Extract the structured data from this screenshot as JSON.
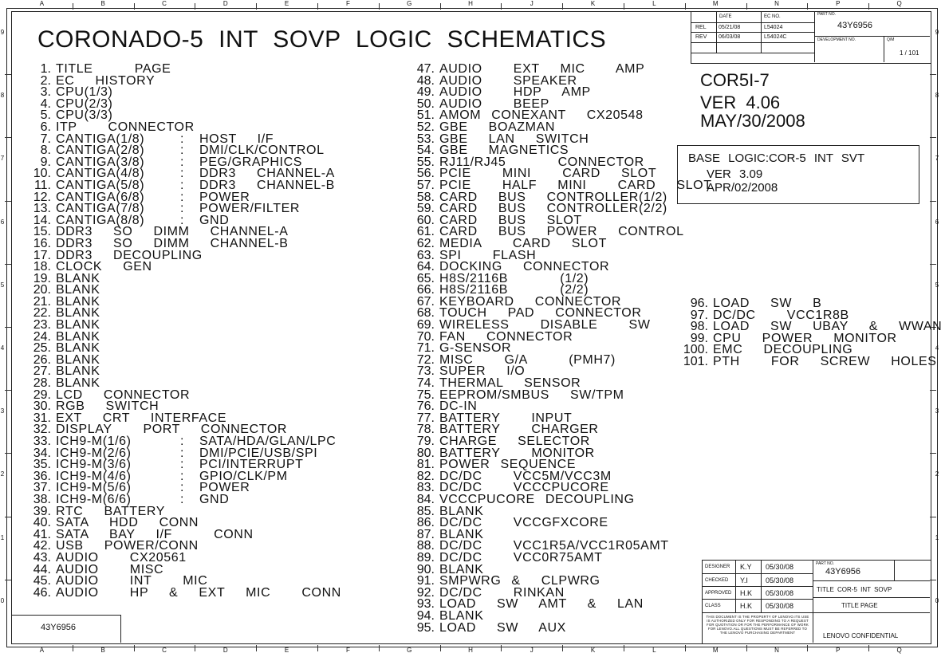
{
  "grid": {
    "columns": [
      "A",
      "B",
      "C",
      "D",
      "E",
      "F",
      "G",
      "H",
      "J",
      "K",
      "L",
      "M",
      "N",
      "P",
      "Q"
    ],
    "rows": [
      "9",
      "8",
      "7",
      "6",
      "5",
      "4",
      "3",
      "2",
      "1",
      "0"
    ]
  },
  "title": "CORONADO-5  INT   SOVP  LOGIC   SCHEMATICS",
  "index_col1": [
    {
      "n": "1.",
      "t": "TITLE    PAGE"
    },
    {
      "n": "2.",
      "t": "EC  HISTORY"
    },
    {
      "n": "3.",
      "t": "CPU(1/3)"
    },
    {
      "n": "4.",
      "t": "CPU(2/3)"
    },
    {
      "n": "5.",
      "t": "CPU(3/3)"
    },
    {
      "n": "6.",
      "t": "ITP   CONNECTOR"
    },
    {
      "n": "7.",
      "t": "CANTIGA(1/8)",
      "s": "HOST  I/F"
    },
    {
      "n": "8.",
      "t": "CANTIGA(2/8)",
      "s": "DMI/CLK/CONTROL"
    },
    {
      "n": "9.",
      "t": "CANTIGA(3/8)",
      "s": "PEG/GRAPHICS"
    },
    {
      "n": "10.",
      "t": "CANTIGA(4/8)",
      "s": "DDR3  CHANNEL-A"
    },
    {
      "n": "11.",
      "t": "CANTIGA(5/8)",
      "s": "DDR3  CHANNEL-B"
    },
    {
      "n": "12.",
      "t": "CANTIGA(6/8)",
      "s": "POWER"
    },
    {
      "n": "13.",
      "t": "CANTIGA(7/8)",
      "s": "POWER/FILTER"
    },
    {
      "n": "14.",
      "t": "CANTIGA(8/8)",
      "s": "GND"
    },
    {
      "n": "15.",
      "t": "DDR3  SO  DIMM  CHANNEL-A"
    },
    {
      "n": "16.",
      "t": "DDR3  SO  DIMM  CHANNEL-B"
    },
    {
      "n": "17.",
      "t": "DDR3  DECOUPLING"
    },
    {
      "n": "18.",
      "t": "CLOCK  GEN"
    },
    {
      "n": "19.",
      "t": "BLANK"
    },
    {
      "n": "20.",
      "t": "BLANK"
    },
    {
      "n": "21.",
      "t": "BLANK"
    },
    {
      "n": "22.",
      "t": "BLANK"
    },
    {
      "n": "23.",
      "t": "BLANK"
    },
    {
      "n": "24.",
      "t": "BLANK"
    },
    {
      "n": "25.",
      "t": "BLANK"
    },
    {
      "n": "26.",
      "t": "BLANK"
    },
    {
      "n": "27.",
      "t": "BLANK"
    },
    {
      "n": "28.",
      "t": "BLANK"
    },
    {
      "n": "29.",
      "t": "LCD  CONNECTOR"
    },
    {
      "n": "30.",
      "t": "RGB  SWITCH"
    },
    {
      "n": "31.",
      "t": "EXT  CRT  INTERFACE"
    },
    {
      "n": "32.",
      "t": "DISPLAY   PORT  CONNECTOR"
    },
    {
      "n": "33.",
      "t": "ICH9-M(1/6)",
      "s": "SATA/HDA/GLAN/LPC"
    },
    {
      "n": "34.",
      "t": "ICH9-M(2/6)",
      "s": "DMI/PCIE/USB/SPI"
    },
    {
      "n": "35.",
      "t": "ICH9-M(3/6)",
      "s": "PCI/INTERRUPT"
    },
    {
      "n": "36.",
      "t": "ICH9-M(4/6)",
      "s": "GPIO/CLK/PM"
    },
    {
      "n": "37.",
      "t": "ICH9-M(5/6)",
      "s": "POWER"
    },
    {
      "n": "38.",
      "t": "ICH9-M(6/6)",
      "s": "GND"
    },
    {
      "n": "39.",
      "t": "RTC  BATTERY"
    },
    {
      "n": "40.",
      "t": "SATA  HDD  CONN"
    },
    {
      "n": "41.",
      "t": "SATA  BAY  I/F    CONN"
    },
    {
      "n": "42.",
      "t": "USB  POWER/CONN"
    },
    {
      "n": "43.",
      "t": "AUDIO   CX20561"
    },
    {
      "n": "44.",
      "t": "AUDIO   MISC"
    },
    {
      "n": "45.",
      "t": "AUDIO   INT   MIC"
    },
    {
      "n": "46.",
      "t": "AUDIO   HP  &  EXT  MIC   CONN"
    }
  ],
  "index_col2": [
    {
      "n": "47.",
      "t": "AUDIO   EXT  MIC   AMP"
    },
    {
      "n": "48.",
      "t": "AUDIO   SPEAKER"
    },
    {
      "n": "49.",
      "t": "AUDIO   HDP  AMP"
    },
    {
      "n": "50.",
      "t": "AUDIO   BEEP"
    },
    {
      "n": "51.",
      "t": "AMOM CONEXANT  CX20548"
    },
    {
      "n": "52.",
      "t": "GBE  BOAZMAN"
    },
    {
      "n": "53.",
      "t": "GBE  LAN  SWITCH"
    },
    {
      "n": "54.",
      "t": "GBE  MAGNETICS"
    },
    {
      "n": "55.",
      "t": "RJ11/RJ45     CONNECTOR"
    },
    {
      "n": "56.",
      "t": "PCIE   MINI   CARD  SLOT"
    },
    {
      "n": "57.",
      "t": "PCIE   HALF  MINI   CARD  SLOT"
    },
    {
      "n": "58.",
      "t": "CARD  BUS  CONTROLLER(1/2)"
    },
    {
      "n": "59.",
      "t": "CARD  BUS  CONTROLLER(2/2)"
    },
    {
      "n": "60.",
      "t": "CARD  BUS  SLOT"
    },
    {
      "n": "61.",
      "t": "CARD  BUS  POWER  CONTROL"
    },
    {
      "n": "62.",
      "t": "MEDIA   CARD  SLOT"
    },
    {
      "n": "63.",
      "t": "SPI   FLASH"
    },
    {
      "n": "64.",
      "t": "DOCKING  CONNECTOR"
    },
    {
      "n": "65.",
      "t": "H8S/2116B     (1/2)"
    },
    {
      "n": "66.",
      "t": "H8S/2116B     (2/2)"
    },
    {
      "n": "67.",
      "t": "KEYBOARD  CONNECTOR"
    },
    {
      "n": "68.",
      "t": "TOUCH  PAD  CONNECTOR"
    },
    {
      "n": "69.",
      "t": "WIRELESS   DISABLE   SW"
    },
    {
      "n": "70.",
      "t": "FAN  CONNECTOR"
    },
    {
      "n": "71.",
      "t": "G-SENSOR"
    },
    {
      "n": "72.",
      "t": "MISC   G/A    (PMH7)"
    },
    {
      "n": "73.",
      "t": "SUPER  I/O"
    },
    {
      "n": "74.",
      "t": "THERMAL  SENSOR"
    },
    {
      "n": "75.",
      "t": "EEPROM/SMBUS  SW/TPM"
    },
    {
      "n": "76.",
      "t": "DC-IN"
    },
    {
      "n": "77.",
      "t": "BATTERY   INPUT"
    },
    {
      "n": "78.",
      "t": "BATTERY   CHARGER"
    },
    {
      "n": "79.",
      "t": "CHARGE  SELECTOR"
    },
    {
      "n": "80.",
      "t": "BATTERY   MONITOR"
    },
    {
      "n": "81.",
      "t": "POWER SEQUENCE"
    },
    {
      "n": "82.",
      "t": "DC/DC   VCC5M/VCC3M"
    },
    {
      "n": "83.",
      "t": "DC/DC   VCCCPUCORE"
    },
    {
      "n": "84.",
      "t": "VCCCPUCORE DECOUPLING"
    },
    {
      "n": "85.",
      "t": "BLANK"
    },
    {
      "n": "86.",
      "t": "DC/DC   VCCGFXCORE"
    },
    {
      "n": "87.",
      "t": "BLANK"
    },
    {
      "n": "88.",
      "t": "DC/DC   VCC1R5A/VCC1R05AMT"
    },
    {
      "n": "89.",
      "t": "DC/DC   VCC0R75AMT"
    },
    {
      "n": "90.",
      "t": "BLANK"
    },
    {
      "n": "91.",
      "t": "SMPWRG &  CLPWRG"
    },
    {
      "n": "92.",
      "t": "DC/DC   RINKAN"
    },
    {
      "n": "93.",
      "t": "LOAD  SW  AMT  &  LAN"
    },
    {
      "n": "94.",
      "t": "BLANK"
    },
    {
      "n": "95.",
      "t": "LOAD  SW  AUX"
    }
  ],
  "index_col3": [
    {
      "n": "96.",
      "t": "LOAD  SW  B"
    },
    {
      "n": "97.",
      "t": "DC/DC   VCC1R8B"
    },
    {
      "n": "98.",
      "t": "LOAD  SW  UBAY  &  WWAN"
    },
    {
      "n": "99.",
      "t": "CPU  POWER  MONITOR"
    },
    {
      "n": "100.",
      "t": "EMC  DECOUPLING"
    },
    {
      "n": "101.",
      "t": "PTH   FOR  SCREW  HOLES"
    }
  ],
  "version_block": {
    "model": "COR5I-7",
    "ver": "VER   4.06",
    "date": "MAY/30/2008"
  },
  "base_logic": {
    "line1": "BASE   LOGIC:COR-5     INT    SVT",
    "line2": "VER   3.09",
    "line3": "APR/02/2008"
  },
  "top_block": {
    "date_hdr": "DATE",
    "ec_hdr": "EC  NO.",
    "rel": "REL",
    "rel_date": "05/21/08",
    "rel_ec": "L54024",
    "rev": "REV",
    "rev_date": "06/03/08",
    "rev_ec": "L54024C",
    "part_no_hdr": "PART  NO.",
    "part_no": "43Y6956",
    "dev_no_hdr": "DEVELOPMENT   NO.",
    "qm_hdr": "Q/M",
    "sheet": "1 /   101"
  },
  "bottom_left_part": "43Y6956",
  "bottom_block": {
    "designer": "DESIGNER",
    "designer_val": "K.Y",
    "designer_date": "05/30/08",
    "checked": "CHECKED",
    "checked_val": "Y.I",
    "checked_date": "05/30/08",
    "approved": "APPROVED",
    "approved_val": "H.K",
    "approved_date": "05/30/08",
    "class": "CLASS",
    "class_val": "H.K",
    "class_date": "05/30/08",
    "part_no_hdr": "PART  NO.",
    "part_no": "43Y6956",
    "title_label": "TITLE    COR-5    INT    SOVP",
    "title_page": "TITLE     PAGE",
    "notice": "THIS DOCUMENT IS THE PROPERTY OF LENOVO.ITS USE IS AUTHORIZED ONLY FOR RESPONDING TO A REQUEST FOR QUOTATION OR FOR THE PERFORMANCE OF WORK FOR LENOVO.ALL QUESTIONS MUST BE REFERRED TO THE LENOVO PURCHASING DEPARTMENT",
    "confidential": "LENOVO  CONFIDENTIAL"
  }
}
